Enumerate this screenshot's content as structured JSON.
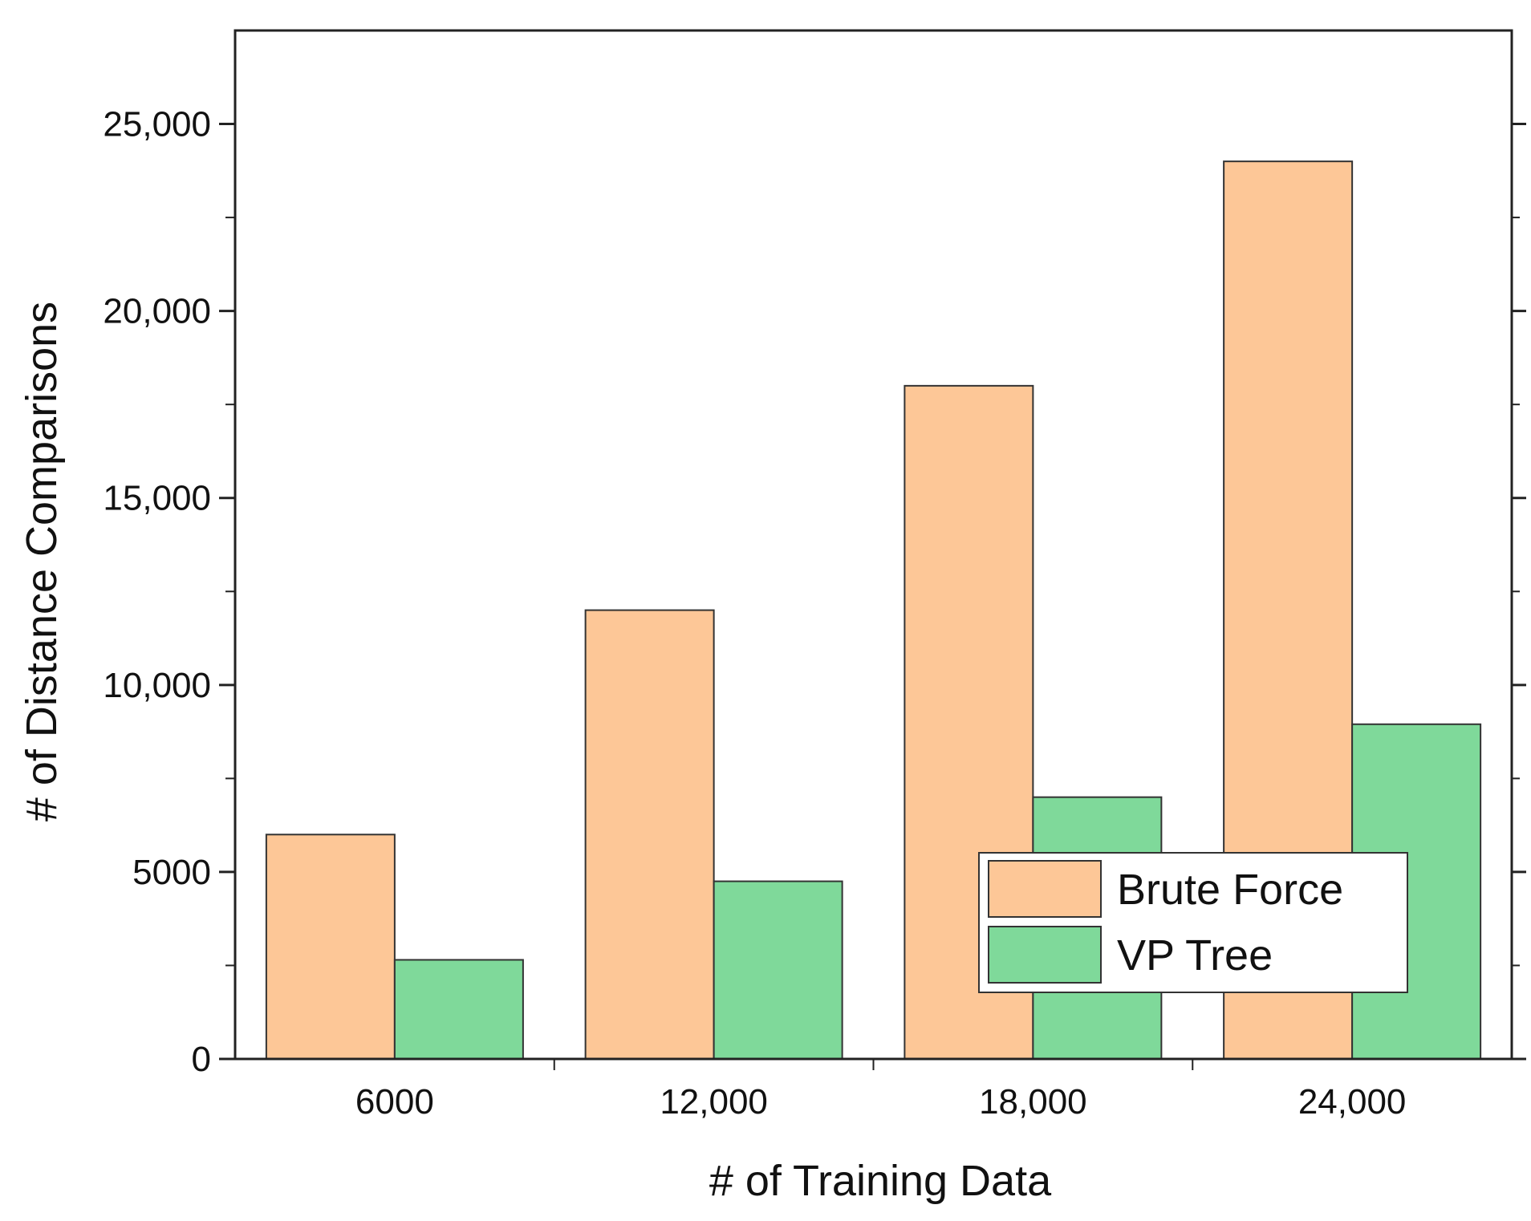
{
  "chart_data": {
    "type": "bar",
    "title": "",
    "xlabel": "# of Training Data",
    "ylabel": "# of Distance Comparisons",
    "categories": [
      "6000",
      "12,000",
      "18,000",
      "24,000"
    ],
    "series": [
      {
        "name": "Brute Force",
        "color": "#FDC797",
        "values": [
          6000,
          12000,
          18000,
          24000
        ]
      },
      {
        "name": "VP Tree",
        "color": "#7FD99A",
        "values": [
          2650,
          4750,
          7000,
          8950
        ]
      }
    ],
    "ylim": [
      0,
      27500
    ],
    "yticks": [
      {
        "value": 0,
        "label": "0"
      },
      {
        "value": 5000,
        "label": "5000"
      },
      {
        "value": 10000,
        "label": "10,000"
      },
      {
        "value": 15000,
        "label": "15,000"
      },
      {
        "value": 20000,
        "label": "20,000"
      },
      {
        "value": 25000,
        "label": "25,000"
      }
    ],
    "yminor_step": 2500,
    "grid": false,
    "legend_position": "bottom-right"
  }
}
